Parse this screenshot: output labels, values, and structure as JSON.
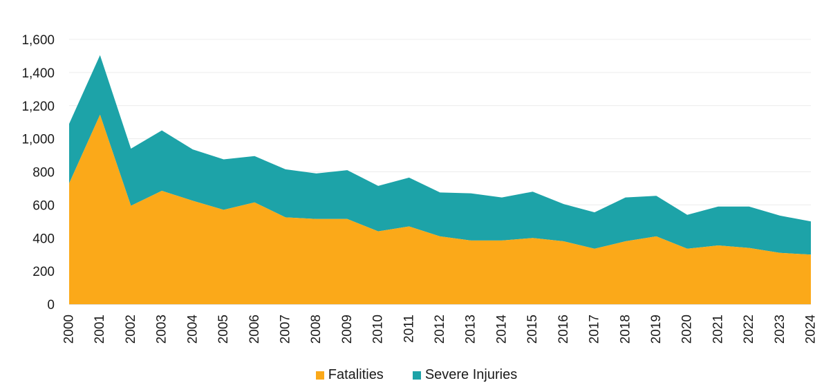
{
  "chart_data": {
    "type": "area",
    "stacked": true,
    "categories": [
      "2000",
      "2001",
      "2002",
      "2003",
      "2004",
      "2005",
      "2006",
      "2007",
      "2008",
      "2009",
      "2010",
      "2011",
      "2012",
      "2013",
      "2014",
      "2015",
      "2016",
      "2017",
      "2018",
      "2019",
      "2020",
      "2021",
      "2022",
      "2023",
      "2024"
    ],
    "series": [
      {
        "name": "Fatalities",
        "color": "#FBA919",
        "values": [
          730,
          1145,
          595,
          685,
          625,
          570,
          615,
          525,
          515,
          515,
          440,
          470,
          410,
          385,
          385,
          400,
          380,
          335,
          380,
          410,
          335,
          355,
          340,
          310,
          300
        ]
      },
      {
        "name": "Severe Injuries",
        "color": "#1DA3A8",
        "values": [
          360,
          360,
          345,
          365,
          310,
          305,
          280,
          290,
          275,
          295,
          275,
          295,
          265,
          285,
          260,
          280,
          225,
          220,
          265,
          245,
          205,
          235,
          250,
          225,
          200
        ]
      }
    ],
    "y_ticks": [
      "0",
      "200",
      "400",
      "600",
      "800",
      "1,000",
      "1,200",
      "1,400",
      "1,600"
    ],
    "ylim": [
      0,
      1600
    ],
    "grid": true,
    "legend_position": "bottom-center"
  }
}
